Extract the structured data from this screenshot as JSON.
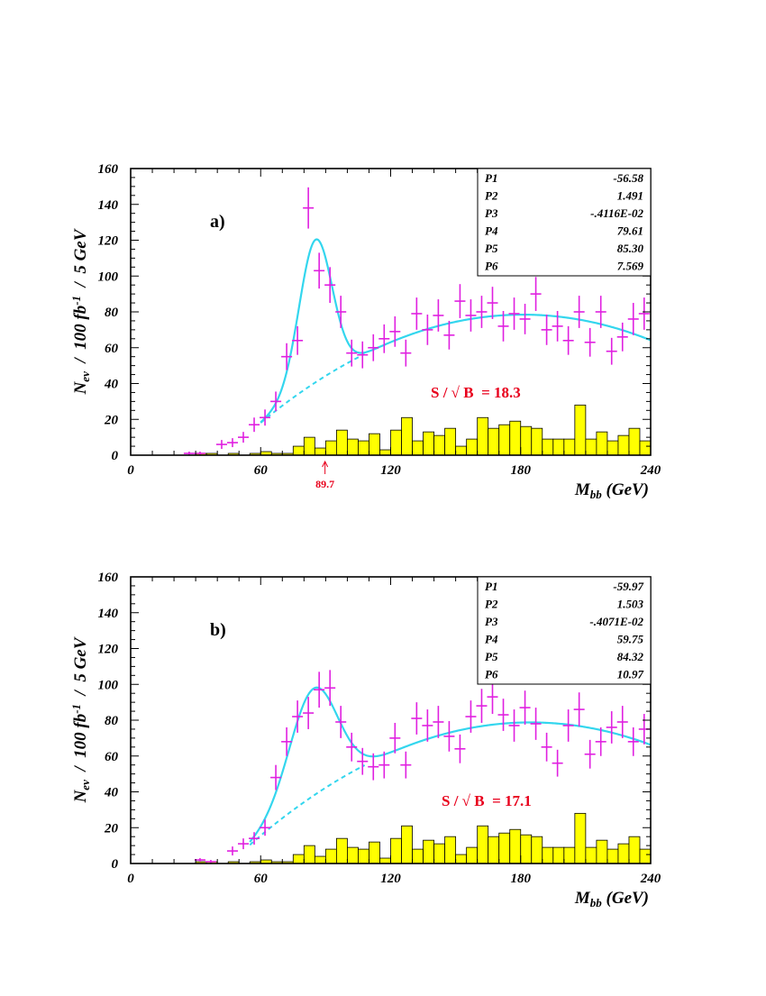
{
  "colors": {
    "data_points": "#e020e0",
    "fit_curve": "#33d6ee",
    "histogram_fill": "#ffff00",
    "histogram_edge": "#000000",
    "annotation": "#e8001c"
  },
  "chart_data": [
    {
      "type": "scatter",
      "panel_label": "a)",
      "ylabel_main": "N",
      "ylabel_sub": "ev",
      "ylabel_rest": "  /  100 fb",
      "ylabel_sup": "-1",
      "ylabel_tail": "  /  5 GeV",
      "xlabel_main": "M",
      "xlabel_sub": "bb",
      "xlabel_tail": " (GeV)",
      "xlim": [
        0,
        240
      ],
      "ylim": [
        0,
        160
      ],
      "xticks": [
        0,
        60,
        120,
        180,
        240
      ],
      "yticks": [
        0,
        20,
        40,
        60,
        80,
        100,
        120,
        140,
        160
      ],
      "significance": "S / √ B  = 18.3",
      "peak_marker": {
        "x": 89.7,
        "label": "89.7"
      },
      "fit_params": [
        {
          "name": "P1",
          "value": "-56.58"
        },
        {
          "name": "P2",
          "value": "1.491"
        },
        {
          "name": "P3",
          "value": "-.4116E-02"
        },
        {
          "name": "P4",
          "value": "79.61"
        },
        {
          "name": "P5",
          "value": "85.30"
        },
        {
          "name": "P6",
          "value": "7.569"
        }
      ],
      "background_fit": {
        "p1": -56.58,
        "p2": 1.491,
        "p3": -0.004116,
        "x_range": [
          60,
          240
        ]
      },
      "signal_fit": {
        "amplitude": 79.61,
        "mean": 85.3,
        "sigma": 7.569,
        "x_range": [
          60,
          240
        ]
      },
      "histogram": {
        "bin_width": 5,
        "bin_start": 0,
        "values": [
          0,
          0,
          0,
          0,
          0,
          0,
          1,
          1,
          0,
          1,
          0,
          1,
          2,
          1,
          1,
          5,
          10,
          4,
          8,
          14,
          9,
          8,
          12,
          3,
          14,
          21,
          8,
          13,
          11,
          15,
          5,
          9,
          21,
          15,
          17,
          19,
          16,
          15,
          9,
          9,
          9,
          28,
          9,
          13,
          8,
          11,
          15,
          8
        ]
      },
      "points": {
        "x": [
          27,
          32,
          42,
          47,
          52,
          57,
          62,
          67,
          72,
          77,
          82,
          87,
          92,
          97,
          102,
          107,
          112,
          117,
          122,
          127,
          132,
          137,
          142,
          147,
          152,
          157,
          162,
          167,
          172,
          177,
          182,
          187,
          192,
          197,
          202,
          207,
          212,
          217,
          222,
          227,
          232,
          237
        ],
        "y": [
          1,
          1,
          6,
          7,
          10,
          17,
          21,
          30,
          55,
          64,
          138,
          103,
          95,
          80,
          57,
          56,
          60,
          65,
          69,
          57,
          79,
          70,
          78,
          67,
          86,
          78,
          80,
          85,
          72,
          79,
          76,
          90,
          70,
          72,
          64,
          80,
          63,
          80,
          58,
          66,
          76,
          79
        ],
        "err": [
          1,
          1,
          2.5,
          2.5,
          3,
          4,
          4.5,
          5.5,
          7.5,
          8,
          11.5,
          10,
          10,
          9,
          7.5,
          7.5,
          7.5,
          8,
          8.5,
          7.5,
          9,
          8.5,
          9,
          8,
          9.5,
          9,
          9,
          9,
          8.5,
          9,
          8.5,
          9.5,
          8.5,
          8.5,
          8,
          9,
          8,
          9,
          7.5,
          8,
          9,
          9
        ],
        "xerr": 2.5
      }
    },
    {
      "type": "scatter",
      "panel_label": "b)",
      "ylabel_main": "N",
      "ylabel_sub": "ev",
      "ylabel_rest": "  /  100 fb",
      "ylabel_sup": "-1",
      "ylabel_tail": "  /  5 GeV",
      "xlabel_main": "M",
      "xlabel_sub": "bb",
      "xlabel_tail": " (GeV)",
      "xlim": [
        0,
        240
      ],
      "ylim": [
        0,
        160
      ],
      "xticks": [
        0,
        60,
        120,
        180,
        240
      ],
      "yticks": [
        0,
        20,
        40,
        60,
        80,
        100,
        120,
        140,
        160
      ],
      "significance": "S / √ B  = 17.1",
      "peak_marker": null,
      "fit_params": [
        {
          "name": "P1",
          "value": "-59.97"
        },
        {
          "name": "P2",
          "value": "1.503"
        },
        {
          "name": "P3",
          "value": "-.4071E-02"
        },
        {
          "name": "P4",
          "value": "59.75"
        },
        {
          "name": "P5",
          "value": "84.32"
        },
        {
          "name": "P6",
          "value": "10.97"
        }
      ],
      "background_fit": {
        "p1": -59.97,
        "p2": 1.503,
        "p3": -0.004071,
        "x_range": [
          55,
          240
        ]
      },
      "signal_fit": {
        "amplitude": 59.75,
        "mean": 84.32,
        "sigma": 10.97,
        "x_range": [
          55,
          240
        ]
      },
      "histogram": {
        "bin_width": 5,
        "bin_start": 0,
        "values": [
          0,
          0,
          0,
          0,
          0,
          0,
          1,
          1,
          0,
          1,
          0,
          1,
          2,
          1,
          1,
          5,
          10,
          4,
          8,
          14,
          9,
          8,
          12,
          3,
          14,
          21,
          8,
          13,
          11,
          15,
          5,
          9,
          21,
          15,
          17,
          19,
          16,
          15,
          9,
          9,
          9,
          28,
          9,
          13,
          8,
          11,
          15,
          8
        ]
      },
      "points": {
        "x": [
          32,
          37,
          47,
          52,
          57,
          62,
          67,
          72,
          77,
          82,
          87,
          92,
          97,
          102,
          107,
          112,
          117,
          122,
          127,
          132,
          137,
          142,
          147,
          152,
          157,
          162,
          167,
          172,
          177,
          182,
          187,
          192,
          197,
          202,
          207,
          212,
          217,
          222,
          227,
          232,
          237
        ],
        "y": [
          2,
          1,
          7,
          11,
          14,
          20,
          48,
          68,
          82,
          84,
          97,
          98,
          79,
          65,
          57,
          54,
          55,
          70,
          55,
          81,
          77,
          79,
          71,
          64,
          82,
          88,
          93,
          83,
          77,
          87,
          78,
          65,
          56,
          77,
          86,
          61,
          68,
          76,
          79,
          68,
          75
        ],
        "err": [
          1,
          1,
          2.5,
          3,
          3.5,
          4.5,
          7,
          8,
          9,
          9,
          10,
          10,
          9,
          8,
          7.5,
          7.5,
          7.5,
          8.5,
          7.5,
          9,
          9,
          9,
          8.5,
          8,
          9,
          9.5,
          9.5,
          9,
          9,
          9.5,
          9,
          8,
          7.5,
          9,
          9.5,
          8,
          8,
          9,
          9,
          8,
          8.5
        ],
        "xerr": 2.5
      }
    }
  ]
}
